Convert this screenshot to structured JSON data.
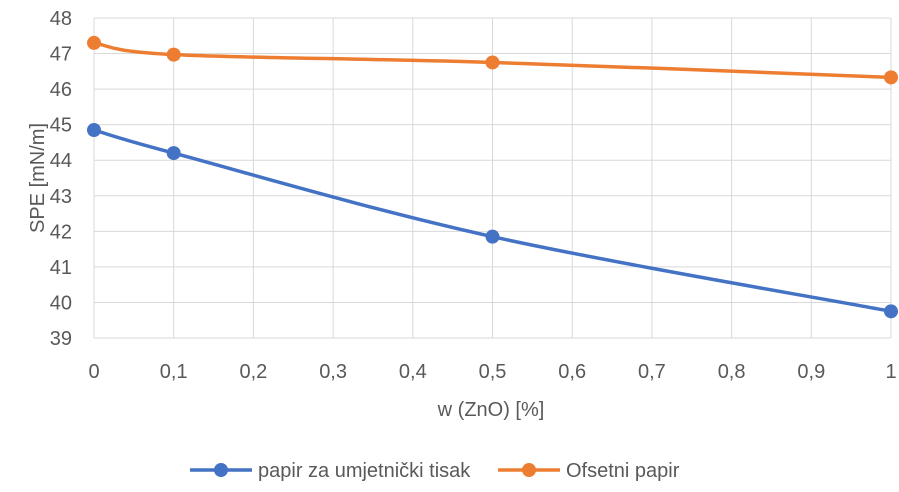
{
  "chart_data": {
    "type": "line",
    "title": "",
    "xlabel": "w (ZnO) [%]",
    "ylabel": "SPE  [mN/m]",
    "x": [
      0,
      0.1,
      0.5,
      1
    ],
    "xlim": [
      0,
      1
    ],
    "ylim": [
      39,
      48
    ],
    "x_ticks": [
      "0",
      "0,1",
      "0,2",
      "0,3",
      "0,4",
      "0,5",
      "0,6",
      "0,7",
      "0,8",
      "0,9",
      "1"
    ],
    "y_ticks": [
      "39",
      "40",
      "41",
      "42",
      "43",
      "44",
      "45",
      "46",
      "47",
      "48"
    ],
    "grid": true,
    "legend_position": "bottom",
    "series": [
      {
        "name": "papir za umjetnički tisak",
        "color": "#4472C4",
        "values": [
          44.85,
          44.2,
          41.85,
          39.75
        ]
      },
      {
        "name": "Ofsetni papir",
        "color": "#ED7D31",
        "values": [
          47.3,
          46.97,
          46.75,
          46.33
        ]
      }
    ]
  }
}
